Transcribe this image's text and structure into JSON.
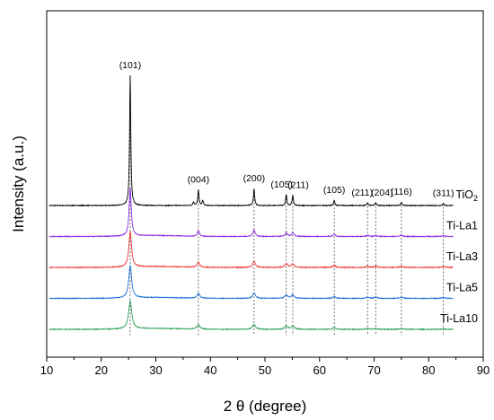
{
  "chart_data": {
    "type": "line",
    "xlabel": "2 θ (degree)",
    "ylabel": "Intensity (a.u.)",
    "xlim": [
      10,
      90
    ],
    "xticks": [
      10,
      20,
      30,
      40,
      50,
      60,
      70,
      80,
      90
    ],
    "y_ticks_shown": false,
    "grid": false,
    "reference_lines_x": [
      25.3,
      37.8,
      48.0,
      53.9,
      55.1,
      62.7,
      68.8,
      70.3,
      75.0,
      82.7
    ],
    "peak_labels": [
      {
        "text": "(101)",
        "x": 25.3
      },
      {
        "text": "(004)",
        "x": 37.8
      },
      {
        "text": "(200)",
        "x": 48.0
      },
      {
        "text": "(105)",
        "x": 53.9
      },
      {
        "text": "(211)",
        "x": 55.1
      },
      {
        "text": "(105)",
        "x": 62.7
      },
      {
        "text": "(211)",
        "x": 68.8
      },
      {
        "text": "(204)",
        "x": 70.3
      },
      {
        "text": "(116)",
        "x": 75.0
      },
      {
        "text": "(311)",
        "x": 82.7
      }
    ],
    "series": [
      {
        "name": "TiO2",
        "label_main": "TiO",
        "label_sub": "2",
        "color": "#000000",
        "offset": 4.0,
        "width_scale": 1.0,
        "noise": 0.012,
        "peaks": [
          [
            25.3,
            4.2
          ],
          [
            36.9,
            0.12
          ],
          [
            37.8,
            0.5
          ],
          [
            38.6,
            0.16
          ],
          [
            48.0,
            0.55
          ],
          [
            53.9,
            0.35
          ],
          [
            55.1,
            0.33
          ],
          [
            62.7,
            0.17
          ],
          [
            68.8,
            0.09
          ],
          [
            70.3,
            0.09
          ],
          [
            75.0,
            0.11
          ],
          [
            82.7,
            0.07
          ]
        ]
      },
      {
        "name": "Ti-La1",
        "label_main": "Ti-La1",
        "label_sub": "",
        "color": "#8a2be2",
        "offset": 3.0,
        "width_scale": 1.8,
        "noise": 0.012,
        "peaks": [
          [
            25.3,
            1.55
          ],
          [
            37.8,
            0.17
          ],
          [
            48.0,
            0.22
          ],
          [
            53.9,
            0.12
          ],
          [
            55.1,
            0.13
          ],
          [
            62.7,
            0.08
          ],
          [
            68.8,
            0.04
          ],
          [
            70.3,
            0.04
          ],
          [
            75.0,
            0.05
          ],
          [
            82.7,
            0.03
          ]
        ]
      },
      {
        "name": "Ti-La3",
        "label_main": "Ti-La3",
        "label_sub": "",
        "color": "#ee3333",
        "offset": 2.0,
        "width_scale": 2.2,
        "noise": 0.012,
        "peaks": [
          [
            25.3,
            1.15
          ],
          [
            37.8,
            0.16
          ],
          [
            48.0,
            0.2
          ],
          [
            53.9,
            0.12
          ],
          [
            55.1,
            0.12
          ],
          [
            62.7,
            0.07
          ],
          [
            68.8,
            0.04
          ],
          [
            70.3,
            0.04
          ],
          [
            75.0,
            0.04
          ],
          [
            82.7,
            0.03
          ]
        ]
      },
      {
        "name": "Ti-La5",
        "label_main": "Ti-La5",
        "label_sub": "",
        "color": "#1e6fd9",
        "offset": 1.0,
        "width_scale": 2.4,
        "noise": 0.012,
        "peaks": [
          [
            25.3,
            1.05
          ],
          [
            37.8,
            0.15
          ],
          [
            48.0,
            0.17
          ],
          [
            53.9,
            0.11
          ],
          [
            55.1,
            0.11
          ],
          [
            62.7,
            0.06
          ],
          [
            68.8,
            0.04
          ],
          [
            70.3,
            0.04
          ],
          [
            75.0,
            0.04
          ],
          [
            82.7,
            0.03
          ]
        ]
      },
      {
        "name": "Ti-La10",
        "label_main": "Ti-La10",
        "label_sub": "",
        "color": "#2ca05a",
        "offset": 0.0,
        "width_scale": 2.7,
        "noise": 0.012,
        "peaks": [
          [
            25.3,
            0.9
          ],
          [
            37.8,
            0.14
          ],
          [
            48.0,
            0.15
          ],
          [
            53.9,
            0.1
          ],
          [
            55.1,
            0.1
          ],
          [
            62.7,
            0.05
          ],
          [
            68.8,
            0.03
          ],
          [
            70.3,
            0.03
          ],
          [
            75.0,
            0.03
          ],
          [
            82.7,
            0.02
          ]
        ]
      }
    ]
  }
}
